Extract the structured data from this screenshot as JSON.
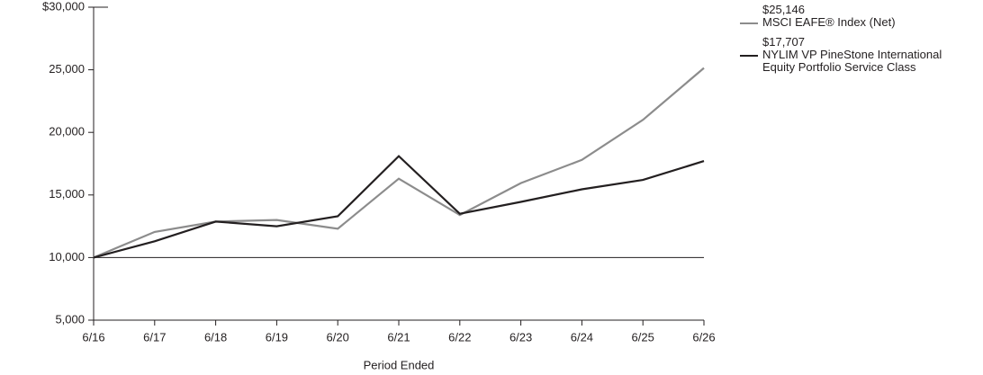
{
  "chart_data": {
    "type": "line",
    "x_label": "Period Ended",
    "categories": [
      "6/16",
      "6/17",
      "6/18",
      "6/19",
      "6/20",
      "6/21",
      "6/22",
      "6/23",
      "6/24",
      "6/25",
      "6/26"
    ],
    "series": [
      {
        "name": "MSCI EAFE® Index (Net)",
        "end_label": "$25,146",
        "color": "#8c8c8c",
        "values": [
          10000,
          12050,
          12870,
          13000,
          12300,
          16300,
          13400,
          15950,
          17800,
          21000,
          25146
        ]
      },
      {
        "name": "NYLIM VP PineStone International Equity Portfolio Service Class",
        "end_label": "$17,707",
        "color": "#231f20",
        "values": [
          10000,
          11300,
          12870,
          12500,
          13300,
          18100,
          13500,
          14450,
          15450,
          16200,
          17707
        ]
      }
    ],
    "ylim": [
      5000,
      30000
    ],
    "yticks": [
      {
        "value": 5000,
        "label": "5,000"
      },
      {
        "value": 10000,
        "label": "10,000"
      },
      {
        "value": 15000,
        "label": "15,000"
      },
      {
        "value": 20000,
        "label": "20,000"
      },
      {
        "value": 25000,
        "label": "25,000"
      },
      {
        "value": 30000,
        "label": "$30,000"
      }
    ],
    "reference_line": 10000
  }
}
